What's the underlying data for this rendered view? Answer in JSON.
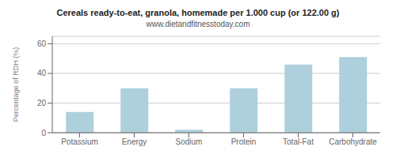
{
  "chart_data": {
    "type": "bar",
    "title": "Cereals ready-to-eat, granola, homemade per 1.000 cup (or 122.00 g)",
    "subtitle": "www.dietandfitnesstoday.com",
    "categories": [
      "Potassium",
      "Energy",
      "Sodium",
      "Protein",
      "Total-Fat",
      "Carbohydrate"
    ],
    "values": [
      14,
      30,
      2,
      30,
      46,
      51
    ],
    "color": "#aecfdc",
    "ylabel": "Percentage of RDH (%)",
    "ylim": [
      0,
      65
    ],
    "yticks": [
      0,
      20,
      40,
      60
    ],
    "grid": true
  }
}
